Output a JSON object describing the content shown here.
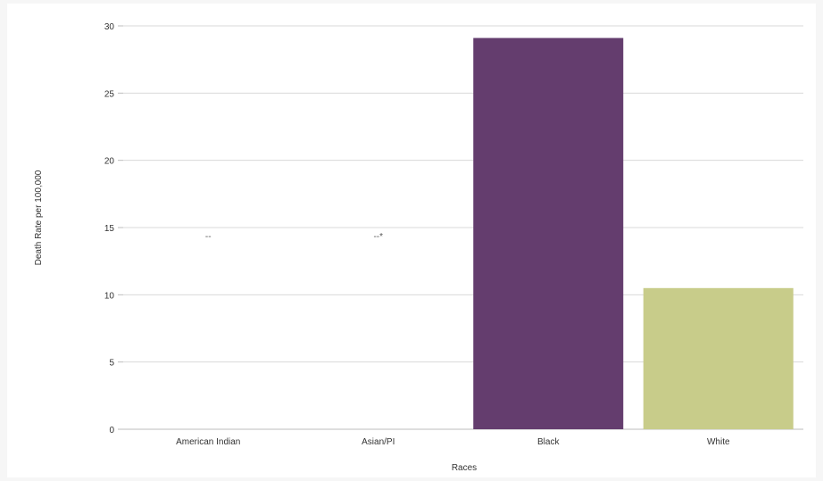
{
  "chart_data": {
    "type": "bar",
    "categories": [
      "American Indian",
      "Asian/PI",
      "Black",
      "White"
    ],
    "values": [
      null,
      null,
      29.1,
      10.5
    ],
    "data_labels": [
      "--",
      "--*",
      "",
      ""
    ],
    "bar_colors": [
      "#c8cc8a",
      "#c8cc8a",
      "#643d6e",
      "#c8cc8a"
    ],
    "xlabel": "Races",
    "ylabel": "Death Rate per 100,000",
    "ylim": [
      0,
      30
    ],
    "yticks": [
      0,
      5,
      10,
      15,
      20,
      25,
      30
    ],
    "grid": true,
    "legend": "none"
  }
}
